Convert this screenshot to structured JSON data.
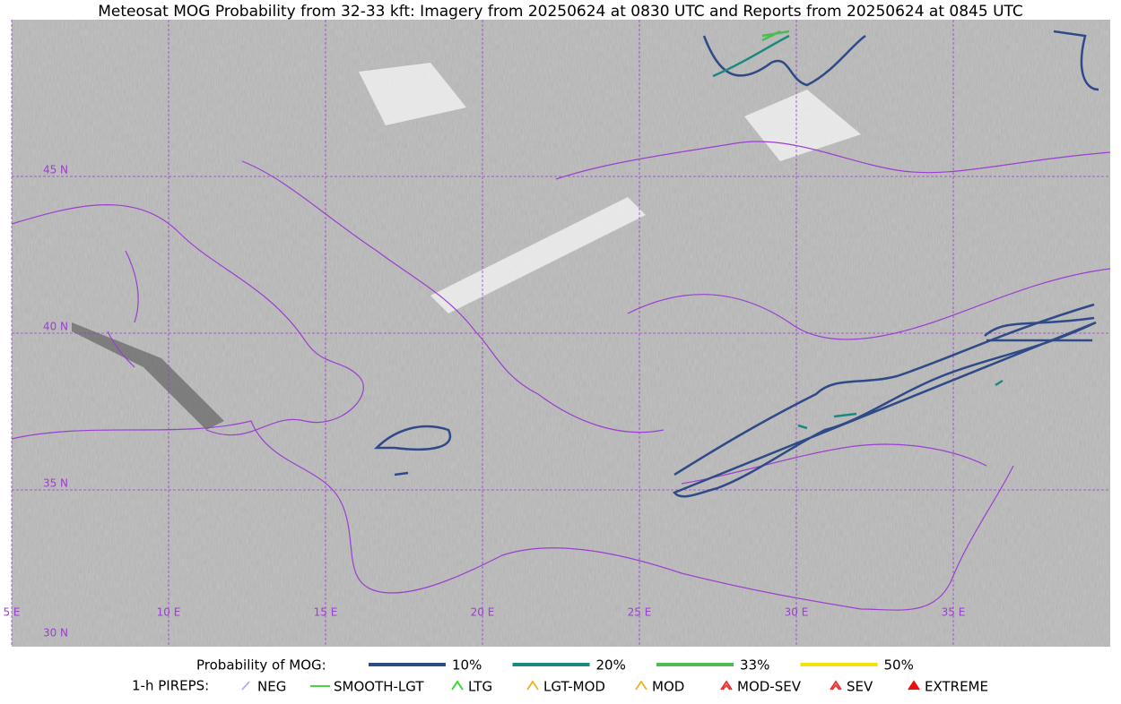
{
  "title": "Meteosat MOG Probability from 32-33 kft: Imagery from 20250624 at 0830 UTC and Reports from 20250624 at 0845 UTC",
  "map": {
    "lat_labels": [
      "45 N",
      "40 N",
      "35 N",
      "30 N"
    ],
    "lon_labels": [
      "5 E",
      "10 E",
      "15 E",
      "20 E",
      "25 E",
      "30 E",
      "35 E"
    ],
    "grid_color": "#9b3fd0"
  },
  "legend": {
    "title": "Probability of MOG:",
    "items": [
      {
        "label": "10%",
        "color": "#2e4a87"
      },
      {
        "label": "20%",
        "color": "#1a8a80"
      },
      {
        "label": "33%",
        "color": "#4cbb50"
      },
      {
        "label": "50%",
        "color": "#f5e10a"
      }
    ]
  },
  "pireps": {
    "title": "1-h PIREPS:",
    "items": [
      {
        "label": "NEG",
        "color": "#aab0f0"
      },
      {
        "label": "SMOOTH-LGT",
        "color": "#33cc33"
      },
      {
        "label": "LTG",
        "color": "#22dd22"
      },
      {
        "label": "LGT-MOD",
        "color": "#f0b020"
      },
      {
        "label": "MOD",
        "color": "#f0b020"
      },
      {
        "label": "MOD-SEV",
        "color": "#e83030"
      },
      {
        "label": "SEV",
        "color": "#e83030"
      },
      {
        "label": "EXTREME",
        "color": "#e81010"
      }
    ]
  }
}
